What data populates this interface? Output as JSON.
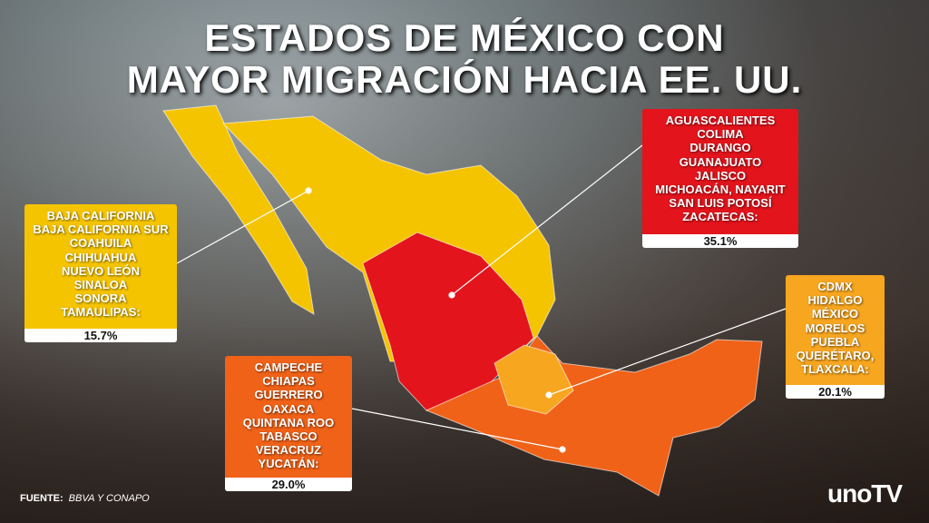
{
  "title": [
    "ESTADOS DE MÉXICO CON",
    "MAYOR MIGRACIÓN HACIA EE. UU."
  ],
  "groups": [
    {
      "states": [
        "BAJA CALIFORNIA",
        "BAJA CALIFORNIA SUR",
        "COAHUILA",
        "CHIHUAHUA",
        "NUEVO LEÓN",
        "SINALOA",
        "SONORA",
        "TAMAULIPAS:"
      ],
      "share": "15.7%",
      "color": "#f5c400"
    },
    {
      "states": [
        "AGUASCALIENTES",
        "COLIMA",
        "DURANGO",
        "GUANAJUATO",
        "JALISCO",
        "MICHOACÁN, NAYARIT",
        "SAN LUIS POTOSÍ",
        "ZACATECAS:"
      ],
      "share": "35.1%",
      "color": "#e3141c"
    },
    {
      "states": [
        "CDMX",
        "HIDALGO",
        "MÉXICO",
        "MORELOS",
        "PUEBLA",
        "QUERÉTARO,",
        "TLAXCALA:"
      ],
      "share": "20.1%",
      "color": "#f7a620"
    },
    {
      "states": [
        "CAMPECHE",
        "CHIAPAS",
        "GUERRERO",
        "OAXACA",
        "QUINTANA ROO",
        "TABASCO",
        "VERACRUZ",
        "YUCATÁN:"
      ],
      "share": "29.0%",
      "color": "#f06218"
    }
  ],
  "source": {
    "label": "FUENTE:",
    "text": "BBVA Y CONAPO"
  },
  "logo": "unoTV"
}
